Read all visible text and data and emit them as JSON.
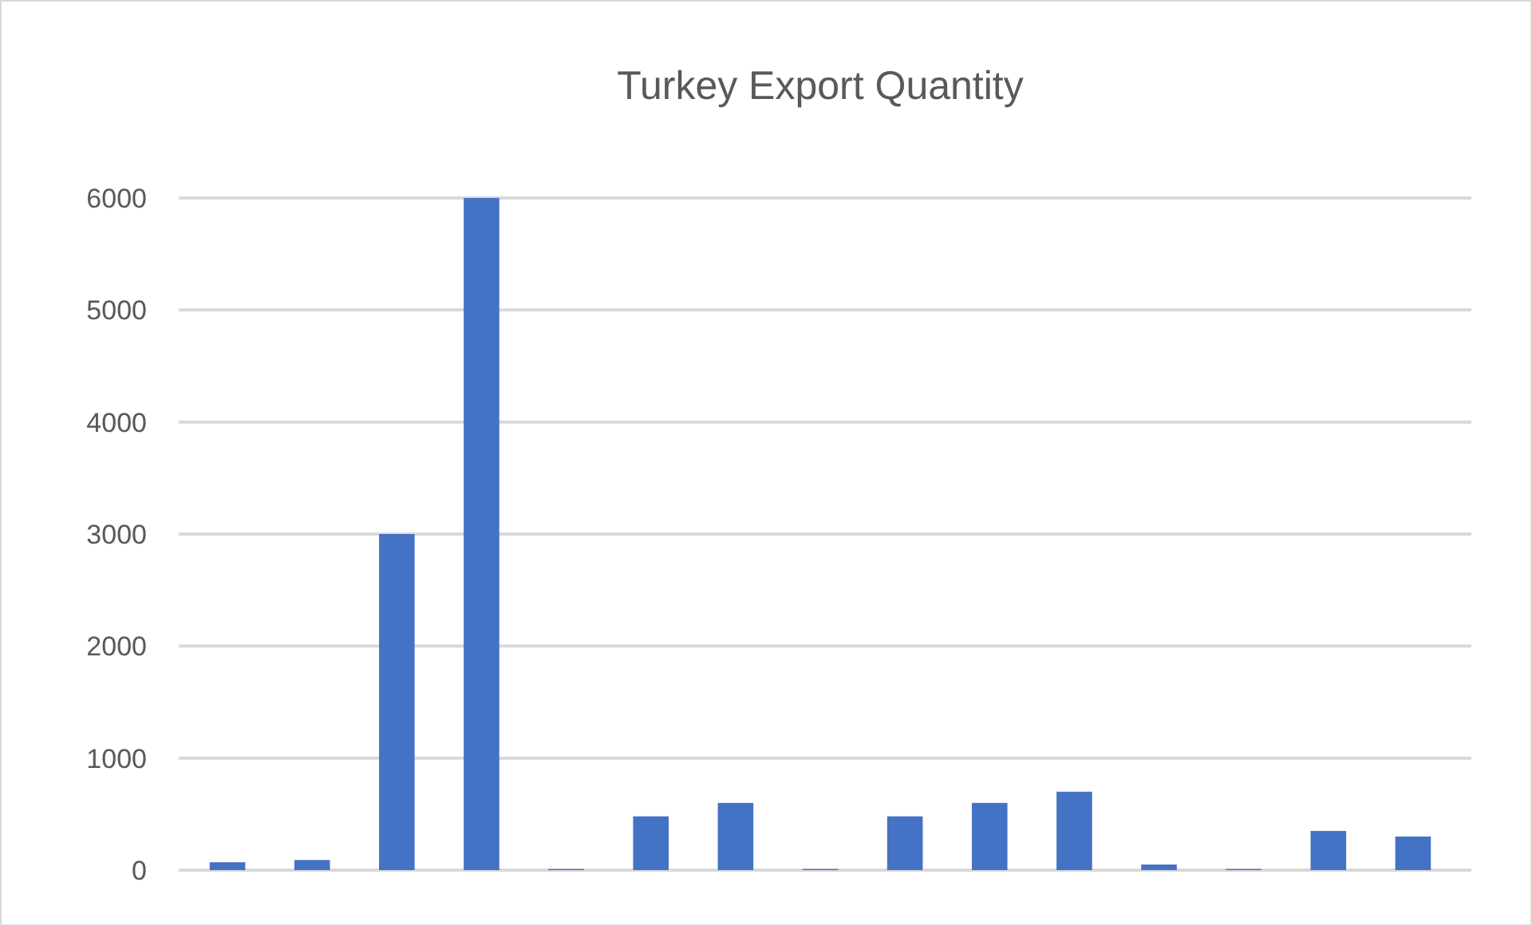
{
  "chart_data": {
    "type": "bar",
    "title": "Turkey Export Quantity",
    "categories": [
      null,
      null,
      null,
      null,
      null,
      null,
      null,
      null,
      null,
      null,
      null,
      null,
      null,
      null,
      null
    ],
    "values": [
      70,
      90,
      3000,
      6000,
      10,
      480,
      600,
      10,
      480,
      600,
      700,
      50,
      10,
      350,
      300
    ],
    "color": "#4472c4",
    "ylim": [
      0,
      6000
    ],
    "yticks": [
      0,
      1000,
      2000,
      3000,
      4000,
      5000,
      6000
    ],
    "grid": true
  }
}
